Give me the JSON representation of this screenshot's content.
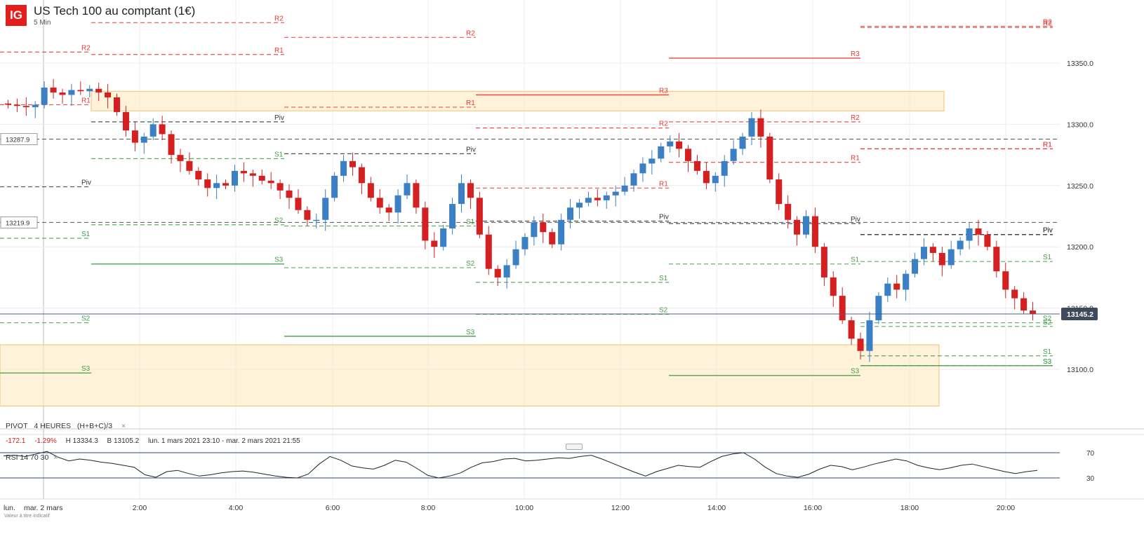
{
  "header": {
    "logo": "IG",
    "title": "US Tech 100 au comptant (1€)",
    "timeframe": "5 Min"
  },
  "indicator_pivot": {
    "label": "PIVOT",
    "period": "4 HEURES",
    "formula": "(H+B+C)/3",
    "close": "×"
  },
  "stats": {
    "change": "-172.1",
    "change_pct": "-1.29%",
    "high": "H 13334.3",
    "low": "B 13105.2",
    "range": "lun. 1 mars 2021 23:10 - mar. 2 mars 2021 21:55"
  },
  "indicator_rsi": {
    "label": "RSI",
    "p1": "14",
    "p2": "70",
    "p3": "30",
    "close": "×"
  },
  "footnote": "Valeur à titre indicatif",
  "chart_data": {
    "type": "candlestick",
    "symbol": "US Tech 100 au comptant (1€)",
    "interval": "5 Min",
    "y_ticks": [
      13350,
      13300,
      13250,
      13200,
      13150,
      13100
    ],
    "y_tick_labels": [
      "13350.0",
      "13300.0",
      "13250.0",
      "13200.0",
      "13150.0",
      "13100.0"
    ],
    "x_ticks": [
      "lun. ",
      "mar. 2 mars",
      "2:00",
      "4:00",
      "6:00",
      "8:00",
      "10:00",
      "12:00",
      "14:00",
      "16:00",
      "18:00",
      "20:00"
    ],
    "ylim": [
      13070,
      13390
    ],
    "current_price": "13145.2",
    "marked_prices": [
      "13287.9",
      "13219.9"
    ],
    "close_path": [
      13316,
      13315,
      13314,
      13316,
      13330,
      13326,
      13324,
      13328,
      13327,
      13329,
      13326,
      13322,
      13310,
      13295,
      13285,
      13290,
      13300,
      13292,
      13275,
      13270,
      13262,
      13255,
      13248,
      13252,
      13250,
      13262,
      13260,
      13258,
      13254,
      13252,
      13246,
      13240,
      13230,
      13222,
      13222,
      13240,
      13258,
      13270,
      13265,
      13252,
      13240,
      13232,
      13228,
      13242,
      13252,
      13232,
      13205,
      13200,
      13215,
      13235,
      13252,
      13240,
      13210,
      13182,
      13175,
      13185,
      13198,
      13208,
      13220,
      13212,
      13202,
      13222,
      13232,
      13236,
      13240,
      13238,
      13242,
      13245,
      13250,
      13260,
      13268,
      13272,
      13282,
      13286,
      13280,
      13270,
      13262,
      13252,
      13258,
      13270,
      13280,
      13290,
      13305,
      13290,
      13255,
      13235,
      13222,
      13210,
      13225,
      13200,
      13175,
      13160,
      13140,
      13125,
      13115,
      13140,
      13160,
      13170,
      13165,
      13178,
      13190,
      13200,
      13195,
      13185,
      13198,
      13205,
      13215,
      13210,
      13200,
      13180,
      13165,
      13158,
      13148,
      13145
    ],
    "pivot_segments": [
      {
        "label": "R2",
        "level": 13359,
        "style": "dashed"
      },
      {
        "label": "R1",
        "level": 13316,
        "style": "dashed"
      },
      {
        "label": "Piv",
        "level": 13249,
        "style": "dashed"
      },
      {
        "label": "S1",
        "level": 13207,
        "style": "dashed"
      },
      {
        "label": "S2",
        "level": 13138,
        "style": "dashed"
      },
      {
        "label": "S3",
        "level": 13097,
        "style": "solid"
      },
      {
        "label": "R2",
        "level": 13383,
        "style": "dashed"
      },
      {
        "label": "R1",
        "level": 13357,
        "style": "dashed"
      },
      {
        "label": "Piv",
        "level": 13302,
        "style": "dashed"
      },
      {
        "label": "S1",
        "level": 13272,
        "style": "dashed"
      },
      {
        "label": "S2",
        "level": 13218,
        "style": "dashed"
      },
      {
        "label": "S3",
        "level": 13186,
        "style": "solid"
      },
      {
        "label": "R2",
        "level": 13371,
        "style": "dashed"
      },
      {
        "label": "R1",
        "level": 13314,
        "style": "dashed"
      },
      {
        "label": "Piv",
        "level": 13276,
        "style": "dashed"
      },
      {
        "label": "S1",
        "level": 13217,
        "style": "dashed"
      },
      {
        "label": "S2",
        "level": 13183,
        "style": "dashed"
      },
      {
        "label": "S3",
        "level": 13127,
        "style": "solid"
      },
      {
        "label": "R3",
        "level": 13324,
        "style": "solid"
      },
      {
        "label": "R2",
        "level": 13297,
        "style": "dashed"
      },
      {
        "label": "R1",
        "level": 13248,
        "style": "dashed"
      },
      {
        "label": "Piv",
        "level": 13221,
        "style": "dashed"
      },
      {
        "label": "S1",
        "level": 13171,
        "style": "dashed"
      },
      {
        "label": "S2",
        "level": 13145,
        "style": "dashed"
      },
      {
        "label": "S3",
        "level": 13095,
        "style": "solid"
      },
      {
        "label": "R3",
        "level": 13354,
        "style": "solid"
      },
      {
        "label": "R2",
        "level": 13302,
        "style": "dashed"
      },
      {
        "label": "R1",
        "level": 13269,
        "style": "dashed"
      },
      {
        "label": "Piv",
        "level": 13219,
        "style": "dashed"
      },
      {
        "label": "S1",
        "level": 13186,
        "style": "dashed"
      },
      {
        "label": "S2",
        "level": 13135,
        "style": "dashed"
      },
      {
        "label": "S3",
        "level": 13103,
        "style": "solid"
      },
      {
        "label": "R2",
        "level": 13379,
        "style": "dashed"
      },
      {
        "label": "R1",
        "level": 13280,
        "style": "dashed"
      },
      {
        "label": "Piv",
        "level": 13210,
        "style": "dashed"
      },
      {
        "label": "S1",
        "level": 13188,
        "style": "dashed"
      },
      {
        "label": "S2",
        "level": 13138,
        "style": "dashed"
      },
      {
        "label": "S3",
        "level": 13103,
        "style": "dashed"
      },
      {
        "label": "R2",
        "level": 13380,
        "style": "dashed"
      },
      {
        "label": "R1",
        "level": 13280,
        "style": "dashed"
      },
      {
        "label": "Piv",
        "level": 13210,
        "style": "dashed"
      },
      {
        "label": "S1",
        "level": 13111,
        "style": "dashed"
      }
    ],
    "zones": [
      {
        "from": 13311,
        "to": 13327
      },
      {
        "from": 13070,
        "to": 13120
      }
    ],
    "rsi": {
      "levels": [
        "70",
        "30"
      ],
      "values": [
        65,
        66,
        64,
        68,
        72,
        63,
        57,
        60,
        58,
        55,
        53,
        50,
        47,
        35,
        31,
        40,
        42,
        37,
        33,
        35,
        38,
        40,
        41,
        39,
        36,
        33,
        31,
        30,
        36,
        52,
        64,
        58,
        49,
        46,
        44,
        50,
        58,
        55,
        45,
        34,
        30,
        33,
        38,
        47,
        54,
        56,
        60,
        61,
        57,
        58,
        60,
        62,
        61,
        64,
        66,
        60,
        53,
        46,
        39,
        33,
        40,
        45,
        50,
        48,
        47,
        56,
        64,
        68,
        70,
        60,
        47,
        37,
        33,
        31,
        36,
        44,
        50,
        48,
        43,
        47,
        52,
        56,
        60,
        57,
        50,
        46,
        43,
        46,
        50,
        52,
        48,
        44,
        40,
        37,
        40,
        42
      ]
    },
    "colors": {
      "up": "#3b7fc4",
      "down": "#d42020",
      "resistance": "#e53935",
      "support": "#43a047",
      "pivot": "#333333"
    }
  }
}
